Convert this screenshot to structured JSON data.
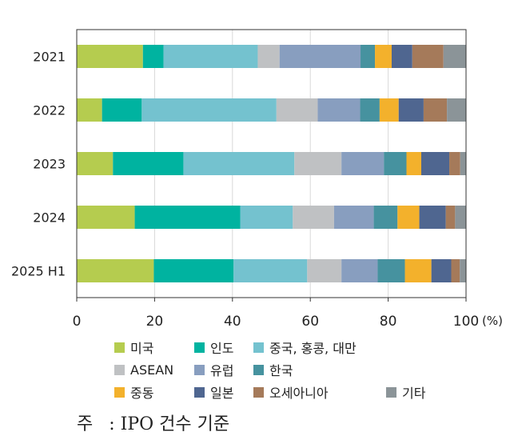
{
  "chart_data": {
    "type": "bar",
    "orientation": "horizontal",
    "stacked": true,
    "categories": [
      "2021",
      "2022",
      "2023",
      "2024",
      "2025 H1"
    ],
    "series": [
      {
        "name": "미국",
        "color": "#b5cc4f",
        "values": [
          17,
          6.5,
          9.3,
          14.9,
          19.8
        ]
      },
      {
        "name": "인도",
        "color": "#00b3a0",
        "values": [
          5.3,
          10.2,
          18.1,
          27.1,
          20.5
        ]
      },
      {
        "name": "중국, 홍콩, 대만",
        "color": "#74c2cf",
        "values": [
          24.2,
          34.6,
          28.5,
          13.5,
          18.9
        ]
      },
      {
        "name": "ASEAN",
        "color": "#bfc1c3",
        "values": [
          5.6,
          10.6,
          12.1,
          10.6,
          8.8
        ]
      },
      {
        "name": "유럽",
        "color": "#889ebf",
        "values": [
          20.8,
          10.9,
          10.9,
          10.2,
          9.3
        ]
      },
      {
        "name": "한국",
        "color": "#46929f",
        "values": [
          3.7,
          5.0,
          5.8,
          6.1,
          7.0
        ]
      },
      {
        "name": "중동",
        "color": "#f3b12c",
        "values": [
          4.3,
          4.9,
          3.8,
          5.6,
          6.8
        ]
      },
      {
        "name": "일본",
        "color": "#4f6690",
        "values": [
          5.3,
          6.4,
          7.2,
          6.8,
          5.1
        ]
      },
      {
        "name": "오세아니아",
        "color": "#a57a5a",
        "values": [
          8.0,
          6.0,
          2.8,
          2.4,
          2.2
        ]
      },
      {
        "name": "기타",
        "color": "#8b9498",
        "values": [
          5.8,
          5.0,
          1.5,
          2.8,
          1.6
        ]
      }
    ],
    "xlim": [
      0,
      100
    ],
    "xticks": [
      "0",
      "20",
      "40",
      "60",
      "80",
      "100"
    ],
    "xunit": "(%)",
    "grid": true
  },
  "note": {
    "prefix": "주",
    "text": ": IPO 건수 기준"
  }
}
